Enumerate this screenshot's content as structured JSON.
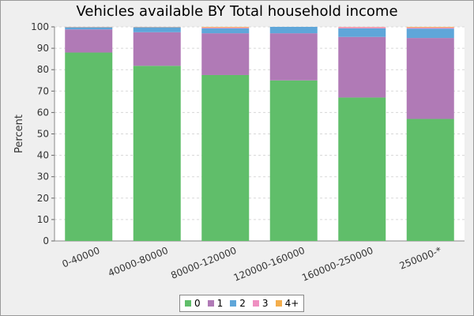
{
  "chart_data": {
    "type": "bar",
    "stacked": true,
    "title": "Vehicles available BY Total household income",
    "xlabel": "",
    "ylabel": "Percent",
    "ylim": [
      0,
      100
    ],
    "yticks": [
      0,
      10,
      20,
      30,
      40,
      50,
      60,
      70,
      80,
      90,
      100
    ],
    "grid": true,
    "legend_position": "bottom",
    "categories": [
      "0-40000",
      "40000-80000",
      "80000-120000",
      "120000-160000",
      "160000-250000",
      "250000-*"
    ],
    "series": [
      {
        "name": "0",
        "color": "#60be6a",
        "values": [
          88.0,
          81.8,
          77.5,
          75.0,
          67.0,
          57.0
        ]
      },
      {
        "name": "1",
        "color": "#b07ab6",
        "values": [
          10.8,
          15.7,
          19.5,
          22.0,
          28.3,
          37.8
        ]
      },
      {
        "name": "2",
        "color": "#5fa6d9",
        "values": [
          1.0,
          2.3,
          2.3,
          3.0,
          4.0,
          4.4
        ]
      },
      {
        "name": "3",
        "color": "#ef8fc1",
        "values": [
          0.1,
          0.1,
          0.4,
          0.0,
          0.6,
          0.5
        ]
      },
      {
        "name": "4+",
        "color": "#f4ae4c",
        "values": [
          0.1,
          0.1,
          0.3,
          0.0,
          0.1,
          0.3
        ]
      }
    ]
  }
}
